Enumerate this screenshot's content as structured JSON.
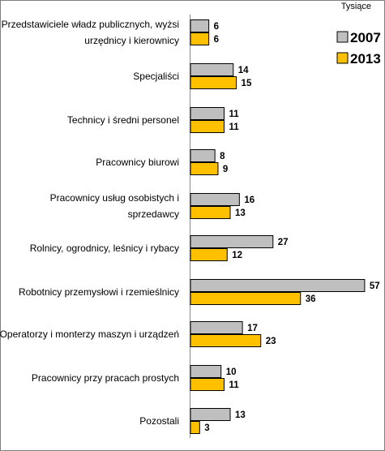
{
  "chart_data": {
    "type": "bar",
    "orientation": "horizontal",
    "unit_label": "Tysiące",
    "categories": [
      [
        "Przedstawiciele władz publicznych, wyżsi",
        "urzędnicy i kierownicy"
      ],
      [
        "Specjaliści"
      ],
      [
        "Technicy i średni personel"
      ],
      [
        "Pracownicy biurowi"
      ],
      [
        "Pracownicy usług osobistych i",
        "sprzedawcy"
      ],
      [
        "Rolnicy, ogrodnicy, leśnicy i rybacy"
      ],
      [
        "Robotnicy przemysłowi i rzemieślnicy"
      ],
      [
        "Operatorzy i monterzy maszyn i urządzeń"
      ],
      [
        "Pracownicy przy pracach prostych"
      ],
      [
        "Pozostali"
      ]
    ],
    "series": [
      {
        "name": "2007",
        "color": "#bfbfbf",
        "values": [
          6,
          14,
          11,
          8,
          16,
          27,
          57,
          17,
          10,
          13
        ]
      },
      {
        "name": "2013",
        "color": "#ffc000",
        "values": [
          6,
          15,
          11,
          9,
          13,
          12,
          36,
          23,
          11,
          3
        ]
      }
    ],
    "xlim": [
      0,
      57
    ],
    "legend_position": "right",
    "grid": false
  }
}
